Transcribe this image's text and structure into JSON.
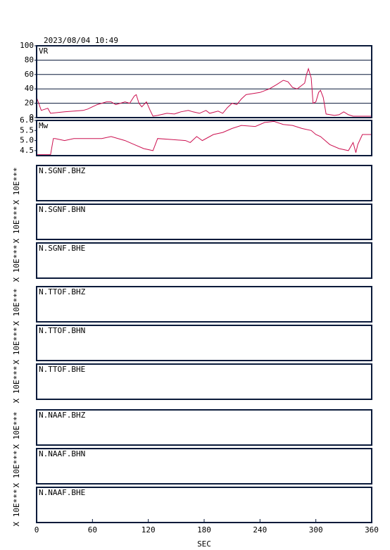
{
  "chart_data": [
    {
      "type": "line",
      "title": "2023/08/04 10:49",
      "label": "VR",
      "color": "#cc1050",
      "grid": true,
      "xlim": [
        0,
        360
      ],
      "ylim": [
        0,
        100
      ],
      "yticks": [
        0,
        20,
        40,
        60,
        80,
        100
      ],
      "x": [
        0,
        5,
        12,
        15,
        30,
        50,
        55,
        65,
        75,
        80,
        85,
        90,
        95,
        100,
        105,
        107,
        110,
        113,
        118,
        122,
        125,
        130,
        140,
        148,
        155,
        163,
        168,
        175,
        182,
        186,
        195,
        200,
        205,
        210,
        215,
        220,
        225,
        240,
        250,
        258,
        265,
        270,
        275,
        280,
        285,
        288,
        290,
        292,
        295,
        297,
        300,
        303,
        305,
        308,
        311,
        320,
        325,
        330,
        335,
        340,
        360
      ],
      "values": [
        28,
        10,
        13,
        6,
        8,
        10,
        12,
        18,
        22,
        22,
        18,
        20,
        22,
        20,
        30,
        32,
        20,
        15,
        22,
        10,
        2,
        3,
        6,
        5,
        8,
        10,
        8,
        6,
        10,
        6,
        9,
        6,
        14,
        20,
        18,
        26,
        32,
        35,
        40,
        46,
        52,
        50,
        42,
        40,
        45,
        48,
        60,
        68,
        55,
        20,
        22,
        35,
        38,
        28,
        5,
        3,
        4,
        8,
        4,
        2,
        2
      ]
    },
    {
      "type": "line",
      "label": "Mw",
      "color": "#cc1050",
      "xlim": [
        0,
        360
      ],
      "ylim": [
        4.25,
        6.0
      ],
      "yticks": [
        4.5,
        {
          "value": 5,
          "label": "5.0"
        },
        5.5,
        {
          "value": 6,
          "label": "6.0"
        }
      ],
      "x": [
        0,
        15,
        18,
        20,
        30,
        40,
        55,
        70,
        80,
        95,
        105,
        115,
        125,
        130,
        145,
        160,
        165,
        172,
        178,
        190,
        200,
        210,
        220,
        235,
        245,
        255,
        265,
        275,
        285,
        295,
        300,
        305,
        315,
        325,
        335,
        340,
        343,
        345,
        350,
        360
      ],
      "values": [
        4.3,
        4.3,
        5.1,
        5.1,
        5.0,
        5.1,
        5.1,
        5.1,
        5.2,
        5.0,
        4.8,
        4.6,
        4.5,
        5.1,
        5.05,
        5.0,
        4.9,
        5.2,
        5.0,
        5.3,
        5.4,
        5.6,
        5.75,
        5.7,
        5.9,
        5.95,
        5.8,
        5.75,
        5.6,
        5.5,
        5.3,
        5.2,
        4.8,
        4.6,
        4.5,
        4.9,
        4.4,
        4.8,
        5.3,
        5.3
      ]
    },
    {
      "type": "waveform",
      "label": "N.SGNF.BHZ",
      "ylabel": "X 10E***"
    },
    {
      "type": "waveform",
      "label": "N.SGNF.BHN",
      "ylabel": "X 10E***"
    },
    {
      "type": "waveform",
      "label": "N.SGNF.BHE",
      "ylabel": "X 10E***"
    },
    {
      "type": "waveform",
      "label": "N.TTOF.BHZ",
      "ylabel": "X 10E***"
    },
    {
      "type": "waveform",
      "label": "N.TTOF.BHN",
      "ylabel": "X 10E***"
    },
    {
      "type": "waveform",
      "label": "N.TTOF.BHE",
      "ylabel": "X 10E***"
    },
    {
      "type": "waveform",
      "label": "N.NAAF.BHZ",
      "ylabel": "X 10E***"
    },
    {
      "type": "waveform",
      "label": "N.NAAF.BHN",
      "ylabel": "X 10E***"
    },
    {
      "type": "waveform",
      "label": "N.NAAF.BHE",
      "ylabel": "X 10E***",
      "xlim": [
        0,
        360
      ],
      "xticks": [
        0,
        60,
        120,
        180,
        240,
        300,
        360
      ],
      "xlabel": "SEC"
    }
  ]
}
